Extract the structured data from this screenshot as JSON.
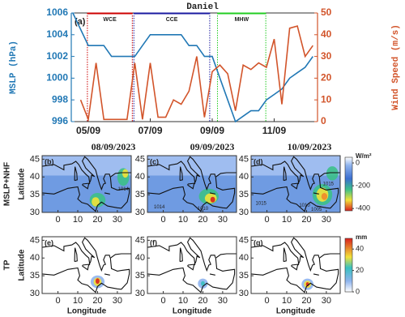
{
  "chart_data": {
    "type": "line",
    "title": "Daniel",
    "panel_label": "(a)",
    "x": [
      4.5,
      4.75,
      5.0,
      5.25,
      5.5,
      5.75,
      6.0,
      6.25,
      6.5,
      6.75,
      7.0,
      7.25,
      7.5,
      7.75,
      8.0,
      8.25,
      8.5,
      8.75,
      9.0,
      9.25,
      9.5,
      9.75,
      10.0,
      10.25,
      10.5,
      10.75,
      11.0,
      11.25,
      11.5,
      11.75,
      12.0,
      12.25
    ],
    "xlim": [
      4.45,
      12.4
    ],
    "xticks": [
      {
        "value": 5,
        "label": "05/09"
      },
      {
        "value": 7,
        "label": "07/09"
      },
      {
        "value": 9,
        "label": "09/09"
      },
      {
        "value": 11,
        "label": "11/09"
      }
    ],
    "y_label": "MSLP (hPa)",
    "y2_label": "Wind Speed (m/s)",
    "ylim": [
      996,
      1006
    ],
    "yticks": [
      996,
      998,
      1000,
      1002,
      1004,
      1006
    ],
    "y2lim": [
      0,
      50
    ],
    "y2ticks": [
      0,
      10,
      20,
      30,
      40,
      50
    ],
    "series": [
      {
        "color": "#2178b5",
        "values": [
          1006,
          1004.5,
          1003,
          1003,
          1003,
          1002,
          1002,
          1002,
          1002,
          1003,
          1004,
          1004,
          1004,
          1004,
          1004,
          1003,
          1003,
          1002,
          1002,
          1000,
          998,
          996,
          996.5,
          997,
          997,
          998,
          998.5,
          999,
          1000,
          1000.5,
          1001,
          1002
        ]
      },
      {
        "color": "#d2542a",
        "axis": "y2",
        "values": [
          null,
          10,
          1,
          27,
          1,
          1,
          1,
          1,
          27,
          1,
          27,
          2,
          2,
          10,
          8,
          14,
          30,
          2,
          23,
          26,
          22,
          5,
          26,
          24,
          27,
          25,
          38,
          8,
          43,
          44,
          30,
          35
        ]
      }
    ],
    "events": [
      {
        "name": "WCE",
        "start": 4.97,
        "end": 6.42,
        "color": "#cc0000"
      },
      {
        "name": "CCE",
        "start": 6.47,
        "end": 8.92,
        "color": "#1a1aa0"
      },
      {
        "name": "MHW",
        "start": 9.17,
        "end": 10.73,
        "color": "#22cc22"
      }
    ]
  },
  "maps": {
    "column_titles": [
      "08/09/2023",
      "09/09/2023",
      "10/09/2023"
    ],
    "row_labels": [
      "MSLP+NHF",
      "TP"
    ],
    "y_label": "Latitude",
    "x_label": "Longitude",
    "xlim": [
      -8,
      37
    ],
    "ylim": [
      30,
      46
    ],
    "xticks": [
      0,
      10,
      20,
      30
    ],
    "yticks": [
      30,
      35,
      40,
      45
    ],
    "panels": [
      {
        "label": "(b)",
        "contour_labels": [
          1014
        ]
      },
      {
        "label": "(c)",
        "contour_labels": [
          1014,
          1010
        ]
      },
      {
        "label": "(d)",
        "contour_labels": [
          1015,
          1010,
          1005,
          1015
        ]
      },
      {
        "label": "(e)"
      },
      {
        "label": "(f)"
      },
      {
        "label": "(g)"
      }
    ],
    "colorbars": [
      {
        "unit": "W/m²",
        "lim": [
          -420,
          50
        ],
        "ticks": [
          0,
          -200,
          -400
        ]
      },
      {
        "unit": "mm",
        "lim": [
          0,
          50
        ],
        "ticks": [
          0,
          20,
          40
        ]
      }
    ]
  }
}
